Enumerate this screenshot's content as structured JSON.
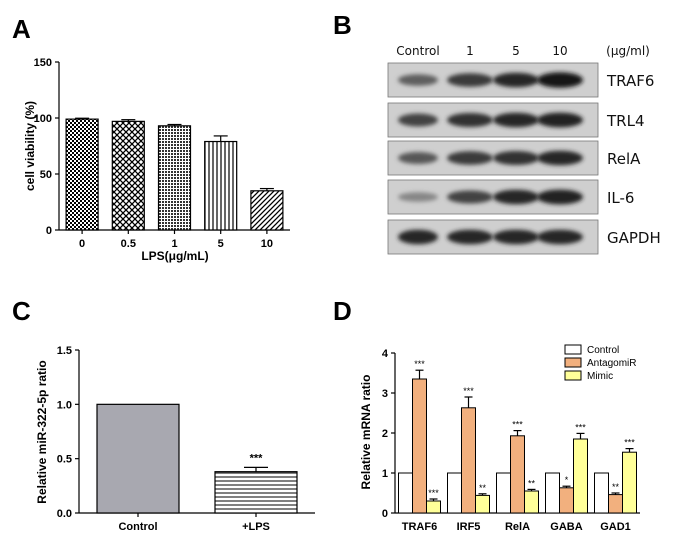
{
  "panels": {
    "a": "A",
    "b": "B",
    "c": "C",
    "d": "D"
  },
  "chart_data": [
    {
      "panel": "A",
      "type": "bar",
      "xlabel": "LPS(μg/mL)",
      "ylabel": "cell viability (%)",
      "categories": [
        "0",
        "0.5",
        "1",
        "5",
        "10"
      ],
      "values": [
        99,
        97,
        93,
        79,
        35
      ],
      "errors": [
        0.8,
        1.5,
        1.2,
        5,
        2
      ],
      "ylim": [
        0,
        150
      ],
      "yticks": [
        "0",
        "50",
        "100",
        "150"
      ],
      "patterns": [
        "checker",
        "diag-cross",
        "dots",
        "vertical",
        "diagonal"
      ]
    },
    {
      "panel": "B",
      "type": "table",
      "header": [
        "Control",
        "1",
        "5",
        "10",
        "(μg/ml)"
      ],
      "rows": [
        "TRAF6",
        "TRL4",
        "RelA",
        "IL-6",
        "GAPDH"
      ],
      "intensity": [
        [
          0.55,
          0.75,
          0.85,
          0.95
        ],
        [
          0.7,
          0.8,
          0.85,
          0.88
        ],
        [
          0.6,
          0.75,
          0.8,
          0.85
        ],
        [
          0.35,
          0.7,
          0.85,
          0.88
        ],
        [
          0.85,
          0.85,
          0.85,
          0.85
        ]
      ]
    },
    {
      "panel": "C",
      "type": "bar",
      "xlabel": "",
      "ylabel": "Relative miR-322-5p ratio",
      "categories": [
        "Control",
        "+LPS"
      ],
      "values": [
        1.0,
        0.38
      ],
      "errors": [
        0,
        0.04
      ],
      "significance": [
        "",
        "***"
      ],
      "ylim": [
        0,
        1.5
      ],
      "yticks": [
        "0.0",
        "0.5",
        "1.0",
        "1.5"
      ],
      "colors": [
        "#a8a8b0",
        "#ffffff"
      ]
    },
    {
      "panel": "D",
      "type": "bar",
      "xlabel": "",
      "ylabel": "Relative mRNA ratio",
      "categories": [
        "TRAF6",
        "IRF5",
        "RelA",
        "GABA",
        "GAD1"
      ],
      "ylim": [
        0,
        4
      ],
      "yticks": [
        "0",
        "1",
        "2",
        "3",
        "4"
      ],
      "legend_position": "top-right",
      "series": [
        {
          "name": "Control",
          "color": "#ffffff",
          "values": [
            1,
            1,
            1,
            1,
            1
          ],
          "errors": [
            0,
            0,
            0,
            0,
            0
          ],
          "stars": [
            "",
            "",
            "",
            "",
            ""
          ]
        },
        {
          "name": "AntagomiR",
          "color": "#f2b07e",
          "values": [
            3.35,
            2.63,
            1.93,
            0.63,
            0.46
          ],
          "errors": [
            0.22,
            0.27,
            0.13,
            0.04,
            0.04
          ],
          "stars": [
            "***",
            "***",
            "***",
            "*",
            "**"
          ]
        },
        {
          "name": "Mimic",
          "color": "#ffff99",
          "values": [
            0.3,
            0.44,
            0.55,
            1.85,
            1.52
          ],
          "errors": [
            0.05,
            0.04,
            0.04,
            0.14,
            0.09
          ],
          "stars": [
            "***",
            "**",
            "**",
            "***",
            "***"
          ]
        }
      ]
    }
  ]
}
